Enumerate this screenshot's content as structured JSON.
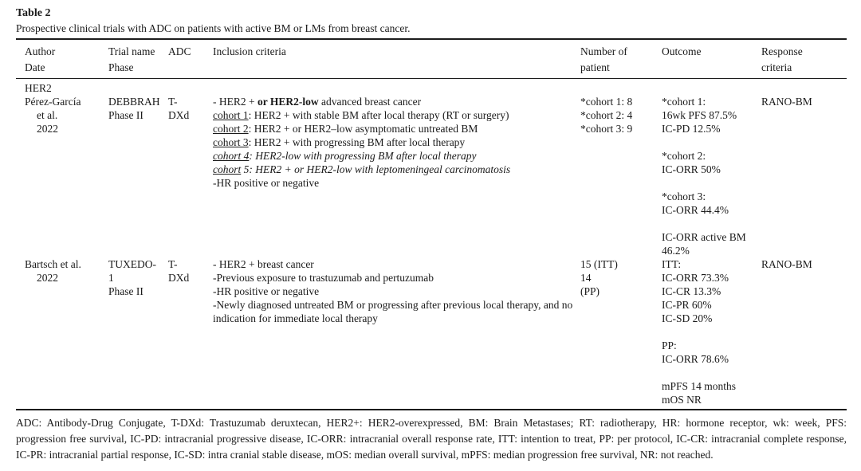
{
  "title": "Table 2",
  "caption": "Prospective clinical trials with ADC on patients with active BM or LMs from breast cancer.",
  "colors": {
    "text": "#1a1a1a",
    "rule": "#1c1c1c",
    "background": "#ffffff"
  },
  "table": {
    "headers": [
      "Author\nDate",
      "Trial name\nPhase",
      "ADC",
      "Inclusion criteria",
      "Number of\npatient",
      "Outcome",
      "Response\ncriteria"
    ],
    "group_label": "HER2",
    "rows": [
      {
        "author": "Pérez-García\net al.\n2022",
        "trial": "DEBBRAH\nPhase II",
        "adc": "T-\nDXd",
        "inclusion_lines": [
          [
            {
              "t": "- HER2 + "
            },
            {
              "t": "or HER2-low",
              "b": true
            },
            {
              "t": " advanced breast cancer"
            }
          ],
          [
            {
              "t": "cohort 1",
              "u": true
            },
            {
              "t": ": HER2 + with stable BM after local therapy (RT or surgery)"
            }
          ],
          [
            {
              "t": "cohort 2",
              "u": true
            },
            {
              "t": ": HER2 + or HER2–low asymptomatic untreated BM"
            }
          ],
          [
            {
              "t": "cohort 3",
              "u": true
            },
            {
              "t": ": HER2 + with progressing BM after local therapy"
            }
          ],
          [
            {
              "t": "cohort 4",
              "u": true,
              "i": true
            },
            {
              "t": ": HER2-low with progressing BM after local therapy",
              "i": true
            }
          ],
          [
            {
              "t": "cohort",
              "u": true,
              "i": true
            },
            {
              "t": " 5: HER2 + or HER2-low with leptomeningeal carcinomatosis",
              "i": true
            }
          ],
          [
            {
              "t": "-HR positive or negative"
            }
          ]
        ],
        "patients": "*cohort 1: 8\n*cohort 2: 4\n*cohort 3: 9",
        "outcome": "*cohort 1:\n16wk PFS 87.5%\nIC-PD 12.5%\n\n*cohort 2:\nIC-ORR 50%\n\n*cohort 3:\nIC-ORR 44.4%\n\nIC-ORR active BM\n46.2%",
        "response": "RANO-BM"
      },
      {
        "author": "Bartsch et al.\n2022",
        "trial": "TUXEDO-\n1\nPhase II",
        "adc": "T-\nDXd",
        "inclusion_lines": [
          [
            {
              "t": "- HER2 + breast cancer"
            }
          ],
          [
            {
              "t": "-Previous exposure to trastuzumab and pertuzumab"
            }
          ],
          [
            {
              "t": "-HR positive or negative"
            }
          ],
          [
            {
              "t": "-Newly diagnosed untreated BM or progressing after previous local therapy, and no indication for immediate local therapy"
            }
          ]
        ],
        "patients": "15 (ITT)\n14\n(PP)",
        "outcome": "ITT:\nIC-ORR 73.3%\nIC-CR 13.3%\nIC-PR 60%\nIC-SD 20%\n\nPP:\nIC-ORR 78.6%\n\nmPFS 14 months\nmOS NR",
        "response": "RANO-BM"
      }
    ]
  },
  "footnote": "ADC: Antibody-Drug Conjugate, T-DXd: Trastuzumab deruxtecan, HER2+: HER2-overexpressed, BM: Brain Metastases; RT: radiotherapy, HR: hormone receptor, wk: week, PFS: progression free survival, IC-PD: intracranial progressive disease, IC-ORR: intracranial overall response rate, ITT: intention to treat, PP: per protocol, IC-CR: intracranial complete response, IC-PR: intracranial partial response, IC-SD: intra cranial stable disease, mOS: median overall survival, mPFS: median progression free survival, NR: not reached."
}
